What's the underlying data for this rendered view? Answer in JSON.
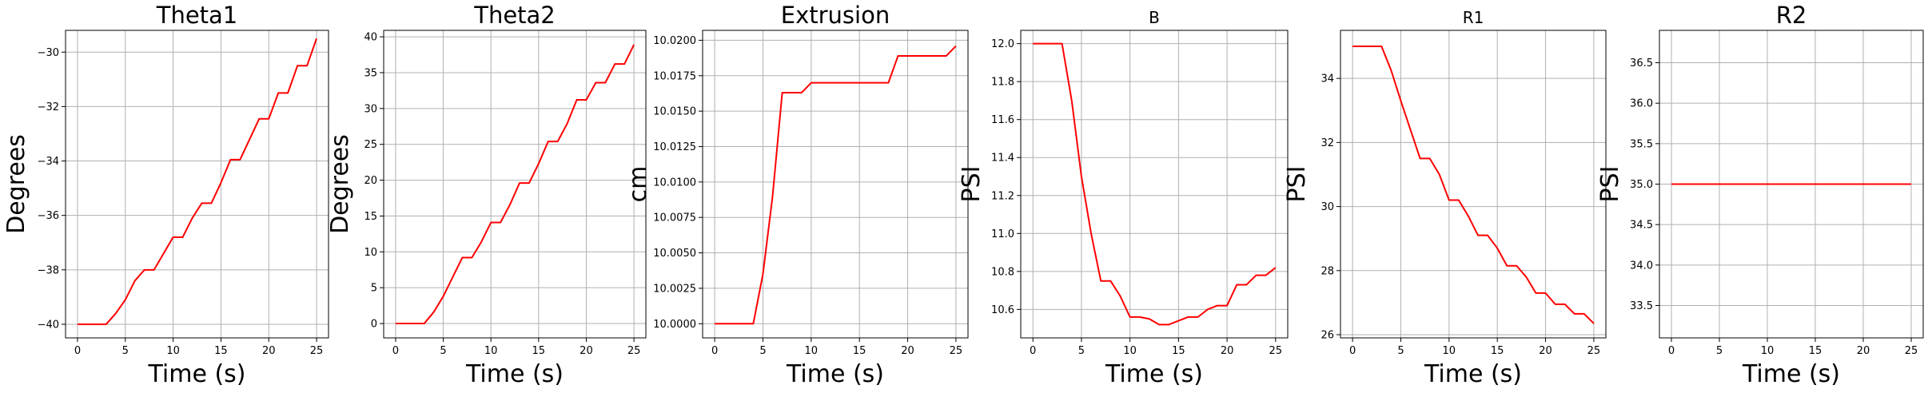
{
  "chart_data": [
    {
      "type": "line",
      "title": "Theta1",
      "xlabel": "Time (s)",
      "ylabel": "Degrees",
      "xlim": [
        -1.25,
        26.25
      ],
      "ylim": [
        -40.5,
        -29.2
      ],
      "xticks": [
        0,
        5,
        10,
        15,
        20,
        25
      ],
      "yticks": [
        -40,
        -38,
        -36,
        -34,
        -32,
        -30
      ],
      "ytick_labels": [
        "−40",
        "−38",
        "−36",
        "−34",
        "−32",
        "−30"
      ],
      "grid": true,
      "series": [
        {
          "color": "#ff0000",
          "x": [
            0,
            1,
            2,
            3,
            4,
            5,
            6,
            7,
            8,
            9,
            10,
            11,
            12,
            13,
            14,
            15,
            16,
            17,
            18,
            19,
            20,
            21,
            22,
            23,
            24,
            25
          ],
          "y": [
            -40,
            -40,
            -40,
            -40,
            -39.6,
            -39.1,
            -38.4,
            -38.0,
            -38.0,
            -37.4,
            -36.8,
            -36.8,
            -36.1,
            -35.55,
            -35.55,
            -34.8,
            -33.95,
            -33.95,
            -33.2,
            -32.45,
            -32.45,
            -31.5,
            -31.5,
            -30.5,
            -30.5,
            -29.5
          ]
        }
      ]
    },
    {
      "type": "line",
      "title": "Theta2",
      "xlabel": "Time (s)",
      "ylabel": "Degrees",
      "xlim": [
        -1.25,
        26.25
      ],
      "ylim": [
        -2,
        40.9
      ],
      "xticks": [
        0,
        5,
        10,
        15,
        20,
        25
      ],
      "yticks": [
        0,
        5,
        10,
        15,
        20,
        25,
        30,
        35,
        40
      ],
      "ytick_labels": [
        "0",
        "5",
        "10",
        "15",
        "20",
        "25",
        "30",
        "35",
        "40"
      ],
      "grid": true,
      "series": [
        {
          "color": "#ff0000",
          "x": [
            0,
            1,
            2,
            3,
            4,
            5,
            6,
            7,
            8,
            9,
            10,
            11,
            12,
            13,
            14,
            15,
            16,
            17,
            18,
            19,
            20,
            21,
            22,
            23,
            24,
            25
          ],
          "y": [
            0,
            0,
            0,
            0,
            1.6,
            3.8,
            6.5,
            9.2,
            9.2,
            11.4,
            14.1,
            14.1,
            16.6,
            19.6,
            19.6,
            22.3,
            25.4,
            25.4,
            27.9,
            31.2,
            31.2,
            33.6,
            33.6,
            36.2,
            36.2,
            38.9
          ]
        }
      ]
    },
    {
      "type": "line",
      "title": "Extrusion",
      "xlabel": "Time (s)",
      "ylabel": "cm",
      "xlim": [
        -1.25,
        26.25
      ],
      "ylim": [
        9.999,
        10.0207
      ],
      "xticks": [
        0,
        5,
        10,
        15,
        20,
        25
      ],
      "yticks": [
        10.0,
        10.0025,
        10.005,
        10.0075,
        10.01,
        10.0125,
        10.015,
        10.0175,
        10.02
      ],
      "ytick_labels": [
        "10.0000",
        "10.0025",
        "10.0050",
        "10.0075",
        "10.0100",
        "10.0125",
        "10.0150",
        "10.0175",
        "10.0200"
      ],
      "grid": true,
      "series": [
        {
          "color": "#ff0000",
          "x": [
            0,
            1,
            2,
            3,
            4,
            5,
            6,
            7,
            8,
            9,
            10,
            11,
            12,
            13,
            14,
            15,
            16,
            17,
            18,
            19,
            20,
            21,
            22,
            23,
            24,
            25
          ],
          "y": [
            10.0,
            10.0,
            10.0,
            10.0,
            10.0,
            10.0035,
            10.009,
            10.0163,
            10.0163,
            10.0163,
            10.017,
            10.017,
            10.017,
            10.017,
            10.017,
            10.017,
            10.017,
            10.017,
            10.017,
            10.0189,
            10.0189,
            10.0189,
            10.0189,
            10.0189,
            10.0189,
            10.0196
          ]
        }
      ]
    },
    {
      "type": "line",
      "title": "B",
      "xlabel": "Time (s)",
      "ylabel": "PSI",
      "xlim": [
        -1.25,
        26.25
      ],
      "ylim": [
        10.45,
        12.07
      ],
      "xticks": [
        0,
        5,
        10,
        15,
        20,
        25
      ],
      "yticks": [
        10.6,
        10.8,
        11.0,
        11.2,
        11.4,
        11.6,
        11.8,
        12.0
      ],
      "ytick_labels": [
        "10.6",
        "10.8",
        "11.0",
        "11.2",
        "11.4",
        "11.6",
        "11.8",
        "12.0"
      ],
      "grid": true,
      "series": [
        {
          "color": "#ff0000",
          "x": [
            0,
            1,
            2,
            3,
            4,
            5,
            6,
            7,
            8,
            9,
            10,
            11,
            12,
            13,
            14,
            15,
            16,
            17,
            18,
            19,
            20,
            21,
            22,
            23,
            24,
            25
          ],
          "y": [
            12.0,
            12.0,
            12.0,
            12.0,
            11.7,
            11.3,
            11.0,
            10.75,
            10.75,
            10.67,
            10.56,
            10.56,
            10.55,
            10.52,
            10.52,
            10.54,
            10.56,
            10.56,
            10.6,
            10.62,
            10.62,
            10.73,
            10.73,
            10.78,
            10.78,
            10.82
          ]
        }
      ]
    },
    {
      "type": "line",
      "title": "R1",
      "xlabel": "Time (s)",
      "ylabel": "PSI",
      "xlim": [
        -1.25,
        26.25
      ],
      "ylim": [
        25.9,
        35.5
      ],
      "xticks": [
        0,
        5,
        10,
        15,
        20,
        25
      ],
      "yticks": [
        26,
        28,
        30,
        32,
        34
      ],
      "ytick_labels": [
        "26",
        "28",
        "30",
        "32",
        "34"
      ],
      "grid": true,
      "series": [
        {
          "color": "#ff0000",
          "x": [
            0,
            1,
            2,
            3,
            4,
            5,
            6,
            7,
            8,
            9,
            10,
            11,
            12,
            13,
            14,
            15,
            16,
            17,
            18,
            19,
            20,
            21,
            22,
            23,
            24,
            25
          ],
          "y": [
            35.0,
            35.0,
            35.0,
            35.0,
            34.25,
            33.3,
            32.4,
            31.5,
            31.5,
            31.0,
            30.2,
            30.2,
            29.7,
            29.1,
            29.1,
            28.7,
            28.15,
            28.15,
            27.8,
            27.3,
            27.3,
            26.95,
            26.95,
            26.65,
            26.65,
            26.35
          ]
        }
      ]
    },
    {
      "type": "line",
      "title": "R2",
      "xlabel": "Time (s)",
      "ylabel": "PSI",
      "xlim": [
        -1.25,
        26.25
      ],
      "ylim": [
        33.1,
        36.9
      ],
      "xticks": [
        0,
        5,
        10,
        15,
        20,
        25
      ],
      "yticks": [
        33.5,
        34.0,
        34.5,
        35.0,
        35.5,
        36.0,
        36.5
      ],
      "ytick_labels": [
        "33.5",
        "34.0",
        "34.5",
        "35.0",
        "35.5",
        "36.0",
        "36.5"
      ],
      "grid": true,
      "series": [
        {
          "color": "#ff0000",
          "x": [
            0,
            1,
            2,
            3,
            4,
            5,
            6,
            7,
            8,
            9,
            10,
            11,
            12,
            13,
            14,
            15,
            16,
            17,
            18,
            19,
            20,
            21,
            22,
            23,
            24,
            25
          ],
          "y": [
            35,
            35,
            35,
            35,
            35,
            35,
            35,
            35,
            35,
            35,
            35,
            35,
            35,
            35,
            35,
            35,
            35,
            35,
            35,
            35,
            35,
            35,
            35,
            35,
            35,
            35
          ]
        }
      ]
    }
  ]
}
